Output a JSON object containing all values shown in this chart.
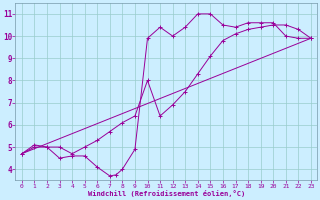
{
  "xlabel": "Windchill (Refroidissement éolien,°C)",
  "background_color": "#cceeff",
  "grid_color": "#99cccc",
  "line_color": "#990099",
  "xlim": [
    -0.5,
    23.5
  ],
  "ylim": [
    3.5,
    11.5
  ],
  "xticks": [
    0,
    1,
    2,
    3,
    4,
    5,
    6,
    7,
    8,
    9,
    10,
    11,
    12,
    13,
    14,
    15,
    16,
    17,
    18,
    19,
    20,
    21,
    22,
    23
  ],
  "yticks": [
    4,
    5,
    6,
    7,
    8,
    9,
    10,
    11
  ],
  "curve1_x": [
    0,
    1,
    2,
    3,
    4,
    5,
    6,
    7,
    7.5,
    8,
    9,
    10,
    11,
    12,
    13,
    14,
    15,
    16,
    17,
    18,
    19,
    20,
    21,
    22,
    23
  ],
  "curve1_y": [
    4.7,
    5.1,
    5.0,
    4.5,
    4.6,
    4.6,
    4.1,
    3.7,
    3.75,
    4.0,
    4.9,
    9.9,
    10.4,
    10.0,
    10.4,
    11.0,
    11.0,
    10.5,
    10.4,
    10.6,
    10.6,
    10.6,
    10.0,
    9.9,
    9.9
  ],
  "curve2_x": [
    0,
    1,
    2,
    3,
    4,
    5,
    6,
    7,
    8,
    9,
    10,
    11,
    12,
    13,
    14,
    15,
    16,
    17,
    18,
    19,
    20,
    21,
    22,
    23
  ],
  "curve2_y": [
    4.7,
    5.0,
    5.0,
    5.0,
    4.7,
    5.0,
    5.3,
    5.7,
    6.1,
    6.4,
    8.0,
    6.4,
    6.9,
    7.5,
    8.3,
    9.1,
    9.8,
    10.1,
    10.3,
    10.4,
    10.5,
    10.5,
    10.3,
    9.9
  ],
  "curve3_x": [
    0,
    23
  ],
  "curve3_y": [
    4.7,
    9.9
  ]
}
